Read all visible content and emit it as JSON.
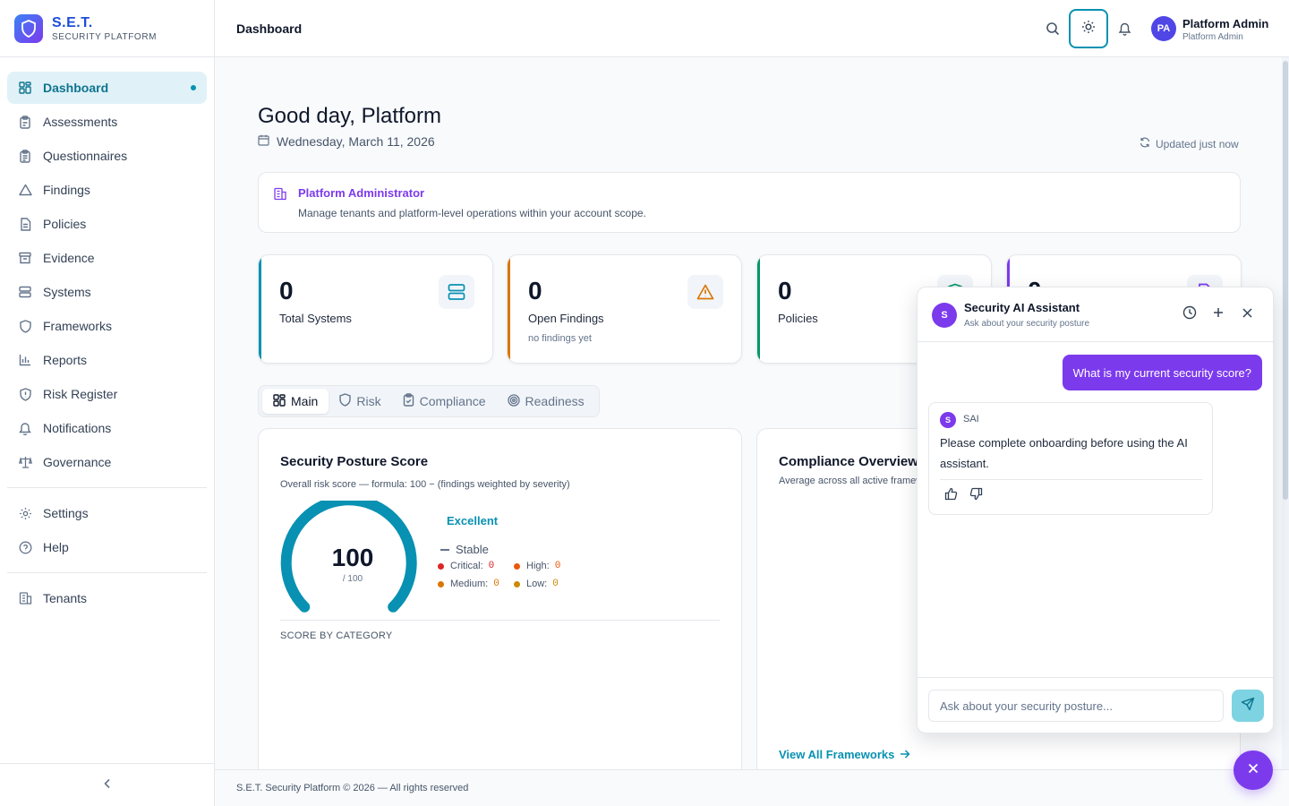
{
  "brand": {
    "name": "S.E.T.",
    "subtitle": "SECURITY PLATFORM"
  },
  "sidebar": {
    "items": [
      {
        "label": "Dashboard",
        "icon": "grid-icon",
        "active": true
      },
      {
        "label": "Assessments",
        "icon": "clipboard-icon"
      },
      {
        "label": "Questionnaires",
        "icon": "clipboard-list-icon"
      },
      {
        "label": "Findings",
        "icon": "warning-triangle-icon"
      },
      {
        "label": "Policies",
        "icon": "document-icon"
      },
      {
        "label": "Evidence",
        "icon": "archive-icon"
      },
      {
        "label": "Systems",
        "icon": "server-icon"
      },
      {
        "label": "Frameworks",
        "icon": "shield-icon"
      },
      {
        "label": "Reports",
        "icon": "bar-chart-icon"
      },
      {
        "label": "Risk Register",
        "icon": "shield-alert-icon"
      },
      {
        "label": "Notifications",
        "icon": "bell-icon"
      },
      {
        "label": "Governance",
        "icon": "scale-icon"
      }
    ],
    "secondary": [
      {
        "label": "Settings",
        "icon": "gear-icon"
      },
      {
        "label": "Help",
        "icon": "help-circle-icon"
      }
    ],
    "admin": [
      {
        "label": "Tenants",
        "icon": "building-icon"
      }
    ]
  },
  "header": {
    "title": "Dashboard",
    "user": {
      "initials": "PA",
      "name": "Platform Admin",
      "role": "Platform Admin"
    }
  },
  "main": {
    "greeting": "Good day, Platform",
    "date": "Wednesday, March 11, 2026",
    "updated": "Updated just now",
    "admin_banner": {
      "title": "Platform Administrator",
      "description": "Manage tenants and platform-level operations within your account scope."
    },
    "stats": [
      {
        "value": "0",
        "label": "Total Systems",
        "sub": "",
        "color": "#0891b2",
        "icon": "server-icon"
      },
      {
        "value": "0",
        "label": "Open Findings",
        "sub": "no findings yet",
        "color": "#d97706",
        "icon": "warning-triangle-icon"
      },
      {
        "value": "0",
        "label": "Policies",
        "sub": "",
        "color": "#059669",
        "icon": "shield-icon"
      },
      {
        "value": "0",
        "label": "",
        "sub": "",
        "color": "#7c3aed",
        "icon": "document-icon"
      }
    ],
    "tabs": [
      {
        "label": "Main",
        "icon": "grid-icon",
        "active": true
      },
      {
        "label": "Risk",
        "icon": "shield-icon"
      },
      {
        "label": "Compliance",
        "icon": "clipboard-check-icon"
      },
      {
        "label": "Readiness",
        "icon": "target-icon"
      }
    ],
    "posture": {
      "title": "Security Posture Score",
      "subtitle": "Overall risk score — formula: 100 − (findings weighted by severity)",
      "score": "100",
      "max": "/ 100",
      "score_fraction": 1.0,
      "rating": "Excellent",
      "trend": "Stable",
      "severities": [
        {
          "label": "Critical:",
          "count": "0",
          "color": "#dc2626"
        },
        {
          "label": "High:",
          "count": "0",
          "color": "#ea580c"
        },
        {
          "label": "Medium:",
          "count": "0",
          "color": "#d97706"
        },
        {
          "label": "Low:",
          "count": "0",
          "color": "#ca8a04"
        }
      ],
      "category_label": "SCORE BY CATEGORY"
    },
    "compliance": {
      "title": "Compliance Overview",
      "subtitle": "Average across all active frameworks",
      "view_all": "View All Frameworks"
    }
  },
  "footer": {
    "text": "S.E.T. Security Platform © 2026 — All rights reserved"
  },
  "chat": {
    "avatar": "S",
    "title": "Security AI Assistant",
    "subtitle": "Ask about your security posture",
    "user_message": "What is my current security score?",
    "bot": {
      "avatar": "S",
      "name": "SAI",
      "message": "Please complete onboarding before using the AI assistant."
    },
    "input_placeholder": "Ask about your security posture..."
  },
  "colors": {
    "accent": "#0891b2",
    "purple": "#7c3aed",
    "brand": "#1d4ed8"
  }
}
